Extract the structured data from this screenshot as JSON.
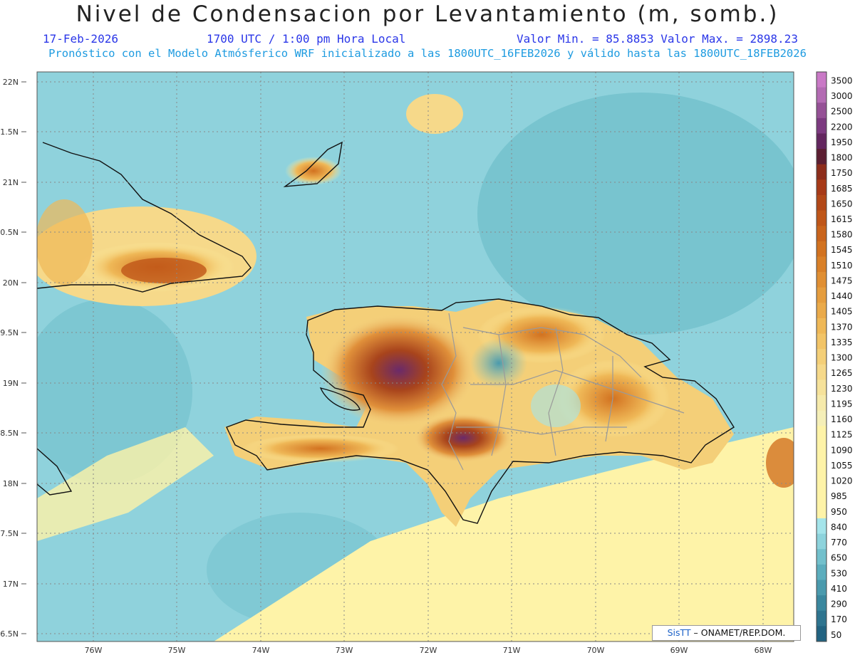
{
  "header": {
    "title": "Nivel de Condensacion por Levantamiento (m, somb.)",
    "date": "17-Feb-2026",
    "time": "1700 UTC / 1:00 pm Hora Local",
    "min_max": "Valor Min. = 85.8853  Valor Max. = 2898.23",
    "model_info": "Pronóstico con el Modelo Atmósferico WRF inicializado a las 1800UTC_16FEB2026 y válido hasta las  1800UTC_18FEB2026"
  },
  "axes": {
    "lat_labels": [
      "22N",
      "1.5N",
      "21N",
      "0.5N",
      "20N",
      "9.5N",
      "19N",
      "8.5N",
      "18N",
      "7.5N",
      "17N",
      "6.5N"
    ],
    "lon_labels": [
      "76W",
      "75W",
      "74W",
      "73W",
      "72W",
      "71W",
      "70W",
      "69W",
      "68W"
    ]
  },
  "colorbar": {
    "levels": [
      "3500",
      "3000",
      "2500",
      "2200",
      "1950",
      "1800",
      "1750",
      "1685",
      "1650",
      "1615",
      "1580",
      "1545",
      "1510",
      "1475",
      "1440",
      "1405",
      "1370",
      "1335",
      "1300",
      "1265",
      "1230",
      "1195",
      "1160",
      "1125",
      "1090",
      "1055",
      "1020",
      "985",
      "950",
      "840",
      "770",
      "650",
      "530",
      "410",
      "290",
      "170",
      "50"
    ],
    "colors": [
      "#c979c6",
      "#b36bb3",
      "#955196",
      "#7c3a80",
      "#63265f",
      "#5c1f32",
      "#8d2d1b",
      "#a73a18",
      "#b24818",
      "#bf5619",
      "#c9641c",
      "#d27220",
      "#d98028",
      "#e08f33",
      "#e59d3e",
      "#eaaa4a",
      "#efb857",
      "#f2c467",
      "#f4cf78",
      "#f6d98a",
      "#f6e29b",
      "#f6eaab",
      "#f5efb8",
      "#fef3a8",
      "#fef3a8",
      "#fef3a8",
      "#fef3a8",
      "#fef3a8",
      "#fef3a8",
      "#a4e4ea",
      "#8dd3dc",
      "#72c0cc",
      "#5cadbd",
      "#4a9aad",
      "#3a879e",
      "#2e748f",
      "#226381"
    ]
  },
  "credit": {
    "brand": "SisTT",
    "org": " – ONAMET/REP.DOM."
  }
}
